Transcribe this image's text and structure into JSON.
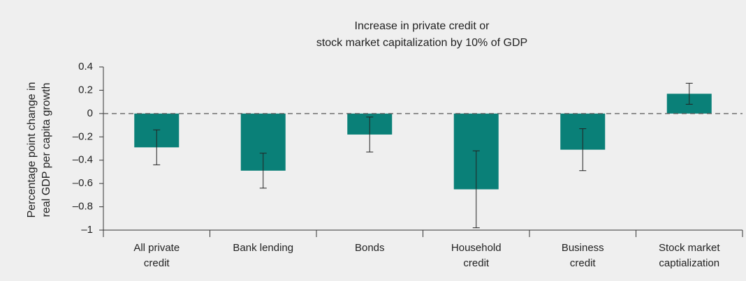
{
  "chart_data": {
    "type": "bar",
    "title": [
      "Increase in private credit or",
      "stock market capitalization by 10% of GDP"
    ],
    "y_label": [
      "Percentage point change in",
      "real GDP per capita growth"
    ],
    "categories": [
      [
        "All private",
        "credit"
      ],
      [
        "Bank lending"
      ],
      [
        "Bonds"
      ],
      [
        "Household",
        "credit"
      ],
      [
        "Business",
        "credit"
      ],
      [
        "Stock market",
        "captialization"
      ]
    ],
    "values": [
      -0.29,
      -0.49,
      -0.18,
      -0.65,
      -0.31,
      0.17
    ],
    "errors": [
      0.15,
      0.15,
      0.15,
      0.33,
      0.18,
      0.09
    ],
    "color": "#0a8078",
    "ylim": [
      -1,
      0.4
    ],
    "yticks": [
      0.4,
      0.2,
      0,
      {
        "value": -0.2,
        "label": "–0.2"
      },
      {
        "value": -0.4,
        "label": "–0.4"
      },
      {
        "value": -0.6,
        "label": "–0.6"
      },
      {
        "value": -0.8,
        "label": "–0.8"
      },
      {
        "value": -1,
        "label": "–1"
      }
    ]
  }
}
